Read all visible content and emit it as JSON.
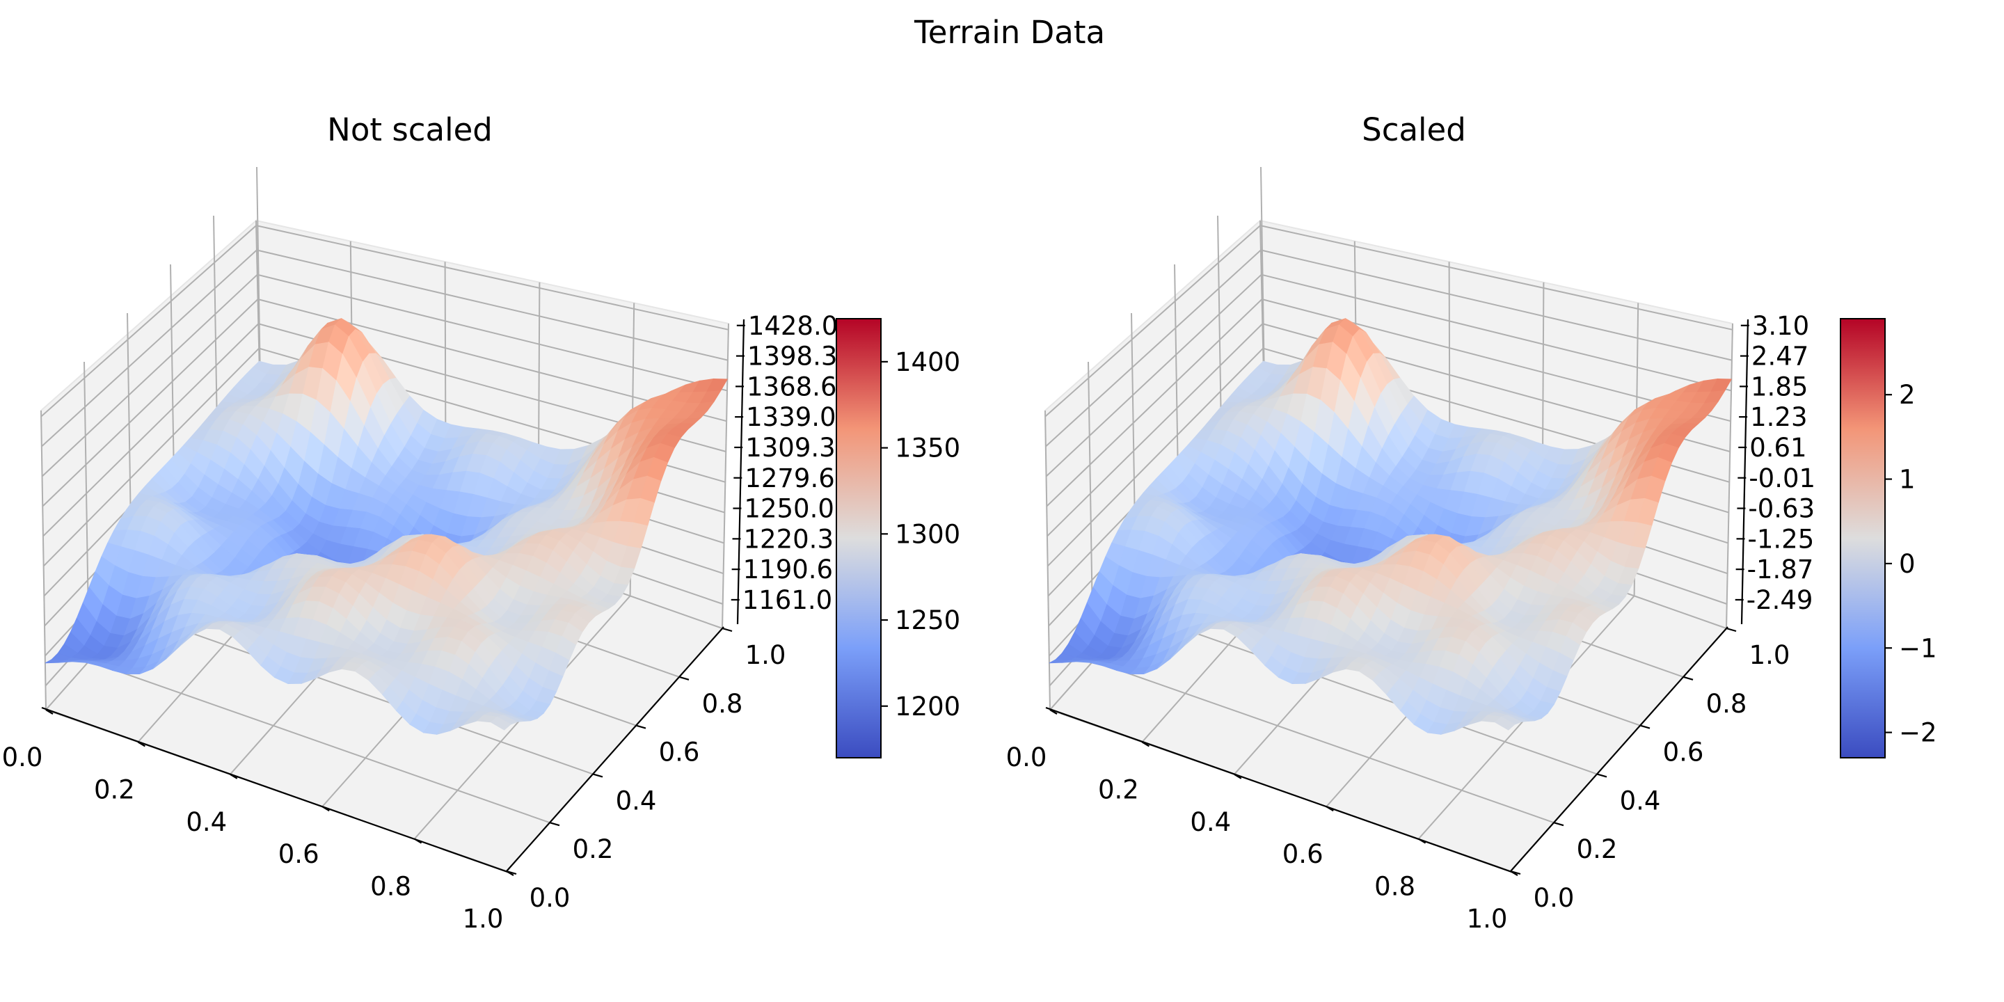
{
  "figure": {
    "title": "Terrain Data"
  },
  "colors": {
    "pane": "#f2f2f2",
    "grid": "#b0b0b0",
    "axis": "#000000",
    "cmap_low": "#3b4cc0",
    "cmap_mid": "#dddddd",
    "cmap_high": "#b40426"
  },
  "chart_data": [
    {
      "type": "surface",
      "title": "Not scaled",
      "colormap": "coolwarm",
      "grid": true,
      "x_ticks": [
        "0.0",
        "0.2",
        "0.4",
        "0.6",
        "0.8",
        "1.0"
      ],
      "y_ticks": [
        "0.0",
        "0.2",
        "0.4",
        "0.6",
        "0.8",
        "1.0"
      ],
      "z_ticks": [
        "1161.0",
        "1190.6",
        "1220.3",
        "1250.0",
        "1279.6",
        "1309.3",
        "1339.0",
        "1368.6",
        "1398.3",
        "1428.0"
      ],
      "zlim": [
        1161.0,
        1428.0
      ],
      "colorbar": {
        "range": [
          1170,
          1425
        ],
        "ticks": [
          1200,
          1250,
          1300,
          1350,
          1400
        ],
        "tick_labels": [
          "1200",
          "1250",
          "1300",
          "1350",
          "1400"
        ]
      }
    },
    {
      "type": "surface",
      "title": "Scaled",
      "colormap": "coolwarm",
      "grid": true,
      "x_ticks": [
        "0.0",
        "0.2",
        "0.4",
        "0.6",
        "0.8",
        "1.0"
      ],
      "y_ticks": [
        "0.0",
        "0.2",
        "0.4",
        "0.6",
        "0.8",
        "1.0"
      ],
      "z_ticks": [
        "-2.49",
        "-1.87",
        "-1.25",
        "-0.63",
        "-0.01",
        "0.61",
        "1.23",
        "1.85",
        "2.47",
        "3.10"
      ],
      "zlim": [
        -2.49,
        3.1
      ],
      "colorbar": {
        "range": [
          -2.3,
          2.9
        ],
        "ticks": [
          -2,
          -1,
          0,
          1,
          2
        ],
        "tick_labels": [
          "−2",
          "−1",
          "0",
          "1",
          "2"
        ]
      }
    }
  ]
}
